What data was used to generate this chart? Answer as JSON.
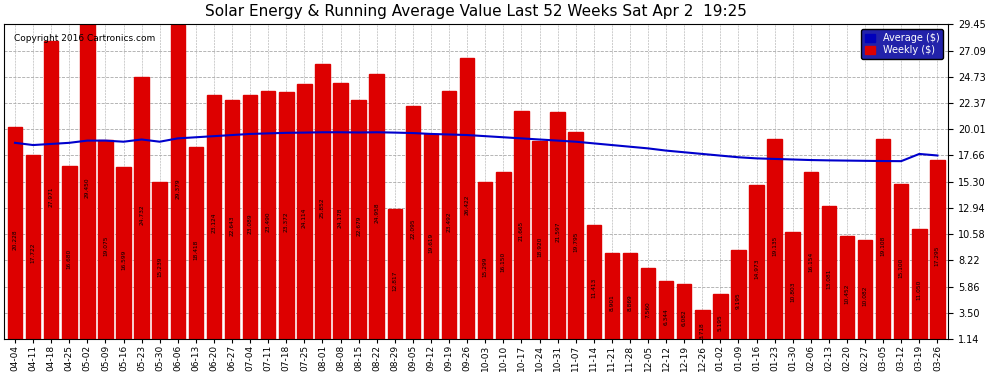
{
  "title": "Solar Energy & Running Average Value Last 52 Weeks Sat Apr 2  19:25",
  "copyright": "Copyright 2016 Cartronics.com",
  "categories": [
    "04-04",
    "04-11",
    "04-18",
    "04-25",
    "05-02",
    "05-09",
    "05-16",
    "05-23",
    "05-30",
    "06-06",
    "06-13",
    "06-20",
    "06-27",
    "07-04",
    "07-11",
    "07-18",
    "07-25",
    "08-01",
    "08-08",
    "08-15",
    "08-22",
    "08-29",
    "09-05",
    "09-12",
    "09-19",
    "09-26",
    "10-03",
    "10-10",
    "10-17",
    "10-24",
    "10-31",
    "11-07",
    "11-14",
    "11-21",
    "11-28",
    "12-05",
    "12-12",
    "12-19",
    "12-26",
    "01-02",
    "01-09",
    "01-16",
    "01-23",
    "01-30",
    "02-06",
    "02-13",
    "02-20",
    "02-27",
    "03-05",
    "03-12",
    "03-19",
    "03-26"
  ],
  "weekly_values": [
    20.228,
    17.722,
    27.971,
    16.68,
    29.45,
    19.075,
    16.599,
    24.732,
    15.239,
    29.379,
    18.418,
    23.124,
    22.643,
    23.089,
    23.49,
    23.372,
    24.114,
    25.852,
    24.178,
    22.679,
    24.958,
    12.817,
    22.095,
    19.619,
    23.492,
    26.422,
    15.299,
    16.15,
    21.665,
    18.92,
    21.597,
    19.795,
    11.413,
    8.901,
    8.869,
    7.56,
    6.344,
    6.082,
    3.718,
    5.195,
    9.195,
    14.973,
    19.135,
    10.803,
    16.154,
    13.081,
    10.452,
    10.082,
    19.108,
    15.1,
    11.05,
    17.295
  ],
  "average_values": [
    18.8,
    18.6,
    18.7,
    18.8,
    19.0,
    19.0,
    18.9,
    19.1,
    18.9,
    19.2,
    19.3,
    19.4,
    19.5,
    19.6,
    19.65,
    19.7,
    19.72,
    19.75,
    19.75,
    19.73,
    19.75,
    19.72,
    19.68,
    19.6,
    19.55,
    19.5,
    19.4,
    19.3,
    19.2,
    19.1,
    19.0,
    18.9,
    18.75,
    18.6,
    18.45,
    18.3,
    18.1,
    17.95,
    17.8,
    17.65,
    17.5,
    17.4,
    17.35,
    17.3,
    17.25,
    17.22,
    17.2,
    17.18,
    17.16,
    17.15,
    17.8,
    17.66
  ],
  "bar_color": "#dd0000",
  "avg_line_color": "#0000cc",
  "background_color": "#ffffff",
  "plot_bg_color": "#ffffff",
  "grid_color": "#aaaaaa",
  "yticks": [
    1.14,
    3.5,
    5.86,
    8.22,
    10.58,
    12.94,
    15.3,
    17.66,
    20.01,
    22.37,
    24.73,
    27.09,
    29.45
  ],
  "ymin": 1.14,
  "ymax": 29.45,
  "legend_avg_color": "#0000bb",
  "legend_weekly_color": "#dd0000"
}
